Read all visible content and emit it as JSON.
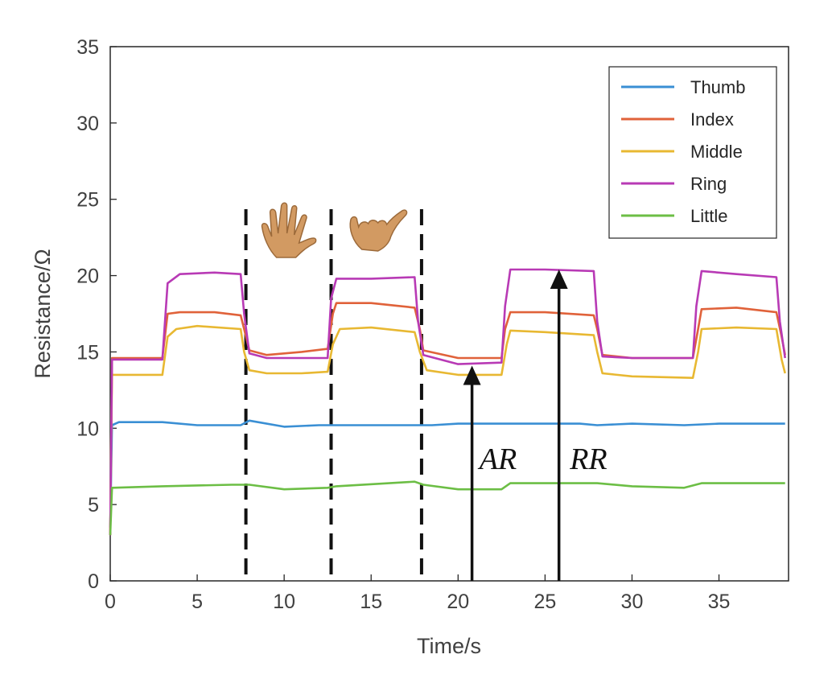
{
  "chart_data": {
    "type": "line",
    "xlabel": "Time/s",
    "ylabel": "Resistance/Ω",
    "xlim": [
      0,
      39
    ],
    "ylim": [
      0,
      35
    ],
    "x_ticks": [
      0,
      5,
      10,
      15,
      20,
      25,
      30,
      35
    ],
    "y_ticks": [
      0,
      5,
      10,
      15,
      20,
      25,
      30,
      35
    ],
    "grid": false,
    "legend_position": "top-right",
    "series": [
      {
        "name": "Thumb",
        "color": "#3a8fd4",
        "points": [
          [
            0,
            3.5
          ],
          [
            0.1,
            10.2
          ],
          [
            0.5,
            10.4
          ],
          [
            3,
            10.4
          ],
          [
            5,
            10.2
          ],
          [
            7.5,
            10.2
          ],
          [
            8,
            10.5
          ],
          [
            10,
            10.1
          ],
          [
            12,
            10.2
          ],
          [
            15,
            10.2
          ],
          [
            17.5,
            10.2
          ],
          [
            18.5,
            10.2
          ],
          [
            20,
            10.3
          ],
          [
            22.5,
            10.3
          ],
          [
            25,
            10.3
          ],
          [
            27,
            10.3
          ],
          [
            28,
            10.2
          ],
          [
            30,
            10.3
          ],
          [
            33,
            10.2
          ],
          [
            35,
            10.3
          ],
          [
            38.8,
            10.3
          ]
        ]
      },
      {
        "name": "Index",
        "color": "#e0623a",
        "points": [
          [
            0,
            3
          ],
          [
            0.1,
            14.6
          ],
          [
            3,
            14.6
          ],
          [
            3.3,
            17.5
          ],
          [
            4,
            17.6
          ],
          [
            6,
            17.6
          ],
          [
            7.5,
            17.4
          ],
          [
            7.7,
            16.5
          ],
          [
            8,
            15.1
          ],
          [
            9,
            14.8
          ],
          [
            11,
            15
          ],
          [
            12.5,
            15.2
          ],
          [
            12.8,
            17.5
          ],
          [
            13,
            18.2
          ],
          [
            15,
            18.2
          ],
          [
            17.5,
            17.9
          ],
          [
            17.8,
            16.5
          ],
          [
            18,
            15.1
          ],
          [
            20,
            14.6
          ],
          [
            22.5,
            14.6
          ],
          [
            22.7,
            16.5
          ],
          [
            23,
            17.6
          ],
          [
            25,
            17.6
          ],
          [
            27.8,
            17.4
          ],
          [
            28,
            16.5
          ],
          [
            28.3,
            14.8
          ],
          [
            30,
            14.6
          ],
          [
            33.5,
            14.6
          ],
          [
            33.8,
            16.5
          ],
          [
            34,
            17.8
          ],
          [
            36,
            17.9
          ],
          [
            38.3,
            17.6
          ],
          [
            38.6,
            16
          ],
          [
            38.8,
            14.8
          ]
        ]
      },
      {
        "name": "Middle",
        "color": "#e8b832",
        "points": [
          [
            0,
            3
          ],
          [
            0.1,
            13.5
          ],
          [
            3,
            13.5
          ],
          [
            3.3,
            16
          ],
          [
            3.8,
            16.5
          ],
          [
            5,
            16.7
          ],
          [
            7.5,
            16.5
          ],
          [
            7.7,
            15
          ],
          [
            8,
            13.8
          ],
          [
            9,
            13.6
          ],
          [
            11,
            13.6
          ],
          [
            12.5,
            13.7
          ],
          [
            12.8,
            15.5
          ],
          [
            13.2,
            16.5
          ],
          [
            15,
            16.6
          ],
          [
            17.5,
            16.3
          ],
          [
            17.8,
            15
          ],
          [
            18.2,
            13.8
          ],
          [
            20,
            13.5
          ],
          [
            22.5,
            13.5
          ],
          [
            22.8,
            15.5
          ],
          [
            23,
            16.4
          ],
          [
            25,
            16.3
          ],
          [
            27.8,
            16.1
          ],
          [
            28,
            15
          ],
          [
            28.3,
            13.6
          ],
          [
            30,
            13.4
          ],
          [
            33.5,
            13.3
          ],
          [
            33.8,
            15
          ],
          [
            34,
            16.5
          ],
          [
            36,
            16.6
          ],
          [
            38.3,
            16.5
          ],
          [
            38.6,
            14.5
          ],
          [
            38.8,
            13.6
          ]
        ]
      },
      {
        "name": "Ring",
        "color": "#b83ab5",
        "points": [
          [
            0,
            3
          ],
          [
            0.1,
            14.5
          ],
          [
            3,
            14.5
          ],
          [
            3.3,
            19.5
          ],
          [
            4,
            20.1
          ],
          [
            6,
            20.2
          ],
          [
            7.5,
            20.1
          ],
          [
            7.7,
            17.5
          ],
          [
            8,
            14.9
          ],
          [
            9,
            14.6
          ],
          [
            12.5,
            14.6
          ],
          [
            12.7,
            18.5
          ],
          [
            13,
            19.8
          ],
          [
            15,
            19.8
          ],
          [
            17.5,
            19.9
          ],
          [
            17.7,
            17
          ],
          [
            18,
            14.8
          ],
          [
            20,
            14.2
          ],
          [
            22.5,
            14.3
          ],
          [
            22.7,
            18
          ],
          [
            23,
            20.4
          ],
          [
            25,
            20.4
          ],
          [
            27.8,
            20.3
          ],
          [
            28,
            17
          ],
          [
            28.3,
            14.7
          ],
          [
            30,
            14.6
          ],
          [
            33.5,
            14.6
          ],
          [
            33.7,
            18
          ],
          [
            34,
            20.3
          ],
          [
            36,
            20.1
          ],
          [
            38.3,
            19.9
          ],
          [
            38.5,
            17
          ],
          [
            38.8,
            14.6
          ]
        ]
      },
      {
        "name": "Little",
        "color": "#6cbe45",
        "points": [
          [
            0,
            3
          ],
          [
            0.1,
            6.1
          ],
          [
            3,
            6.2
          ],
          [
            7,
            6.3
          ],
          [
            8,
            6.3
          ],
          [
            10,
            6
          ],
          [
            12.5,
            6.1
          ],
          [
            13,
            6.2
          ],
          [
            17.5,
            6.5
          ],
          [
            18,
            6.3
          ],
          [
            20,
            6
          ],
          [
            22.5,
            6
          ],
          [
            23,
            6.4
          ],
          [
            28,
            6.4
          ],
          [
            30,
            6.2
          ],
          [
            33,
            6.1
          ],
          [
            34,
            6.4
          ],
          [
            38.8,
            6.4
          ]
        ]
      }
    ],
    "vertical_dashed_lines_x": [
      7.8,
      12.7,
      17.9
    ],
    "annotations": [
      {
        "label": "AR",
        "arrow_x": 20.8,
        "arrow_from_y": 0,
        "arrow_to_y": 14.1,
        "label_x": 22.3,
        "label_y": 8
      },
      {
        "label": "RR",
        "arrow_x": 25.8,
        "arrow_from_y": 0,
        "arrow_to_y": 20.4,
        "label_x": 27.5,
        "label_y": 8
      }
    ],
    "hand_icons": [
      {
        "name": "open-hand-icon",
        "x_center": 10.3
      },
      {
        "name": "bent-hand-icon",
        "x_center": 15.3
      }
    ]
  }
}
